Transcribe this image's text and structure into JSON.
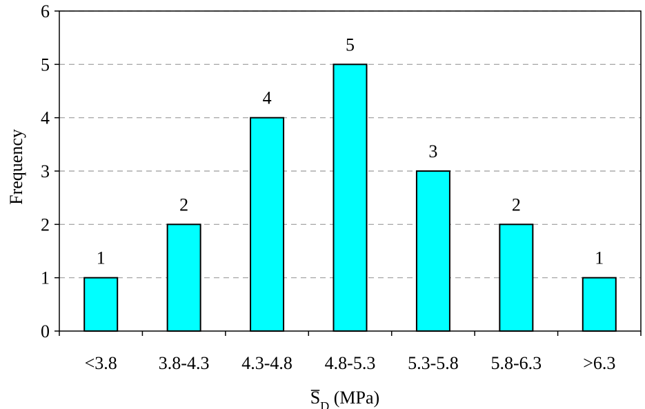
{
  "chart_data": {
    "type": "bar",
    "categories": [
      "<3.8",
      "3.8-4.3",
      "4.3-4.8",
      "4.8-5.3",
      "5.3-5.8",
      "5.8-6.3",
      ">6.3"
    ],
    "values": [
      1,
      2,
      4,
      5,
      3,
      2,
      1
    ],
    "data_labels": [
      "1",
      "2",
      "4",
      "5",
      "3",
      "2",
      "1"
    ],
    "ylabel": "Frequency",
    "xlabel_main": "S",
    "xlabel_sub": "D",
    "xlabel_unit": " (MPa)",
    "ylim": [
      0,
      6
    ],
    "yticks": [
      0,
      1,
      2,
      3,
      4,
      5,
      6
    ],
    "ytick_labels": [
      "0",
      "1",
      "2",
      "3",
      "4",
      "5",
      "6"
    ],
    "grid": "horizontal dashed",
    "colors": {
      "bar_fill": "#00ffff",
      "bar_stroke": "#000000",
      "grid": "#999999"
    }
  }
}
